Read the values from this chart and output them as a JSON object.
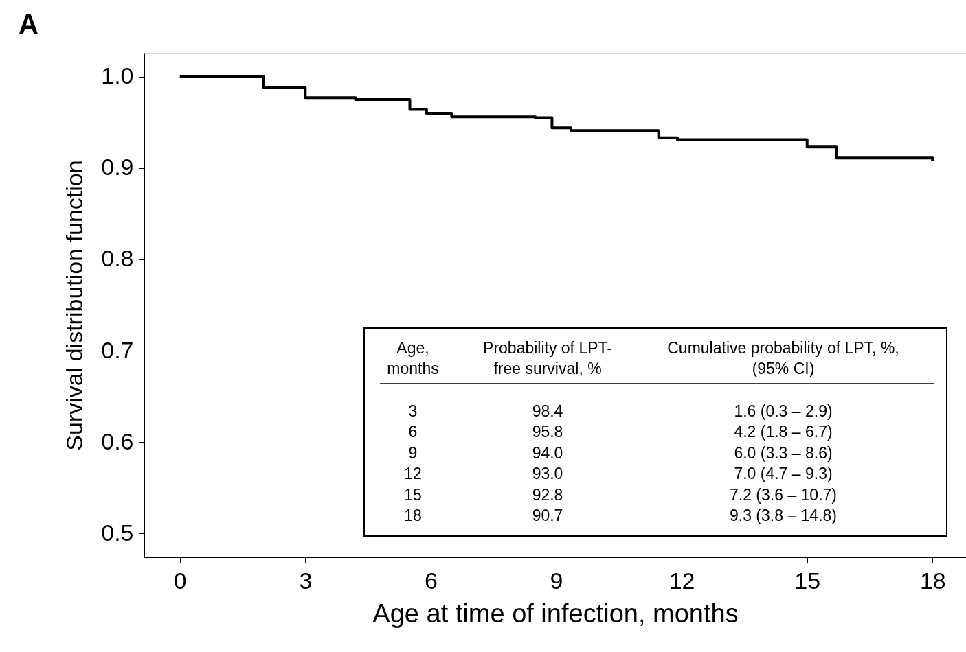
{
  "chart_data": {
    "type": "step",
    "title": "A",
    "xlabel": "Age at time of infection, months",
    "ylabel": "Survival distribution function",
    "x": [
      0,
      2.0,
      3.0,
      4.2,
      5.5,
      5.9,
      6.5,
      8.5,
      8.9,
      9.35,
      11.45,
      11.9,
      15.0,
      15.7,
      18.0
    ],
    "series": [
      {
        "color": "#000000",
        "values": [
          1.0,
          0.988,
          0.977,
          0.975,
          0.964,
          0.96,
          0.956,
          0.955,
          0.944,
          0.941,
          0.933,
          0.931,
          0.923,
          0.911,
          0.908
        ]
      }
    ],
    "xlim": [
      -0.85,
      18.8
    ],
    "xticks": [
      0,
      3,
      6,
      9,
      12,
      15,
      18
    ],
    "ylim": [
      0.474,
      1.026
    ],
    "yticks": [
      {
        "value": 0.5,
        "label": "0.5"
      },
      {
        "value": 0.6,
        "label": "0.6"
      },
      {
        "value": 0.7,
        "label": "0.7"
      },
      {
        "value": 0.8,
        "label": "0.8"
      },
      {
        "value": 0.9,
        "label": "0.9"
      },
      {
        "value": 1.0,
        "label": "1.0"
      }
    ],
    "grid": false,
    "legend": false,
    "marker": "none",
    "line_style": "solid",
    "annotations": [
      "Age,\nmonths",
      "Probability of LPT-\nfree survival, %",
      "Cumulative probability of LPT, %,\n(95% CI)",
      "3",
      "98.4",
      "1.6 (0.3 – 2.9)",
      "6",
      "95.8",
      "4.2 (1.8 – 6.7)",
      "9",
      "94.0",
      "6.0 (3.3 – 8.6)",
      "12",
      "93.0",
      "7.0 (4.7 – 9.3)",
      "15",
      "92.8",
      "7.2 (3.6 – 10.7)",
      "18",
      "90.7",
      "9.3 (3.8 – 14.8)"
    ]
  }
}
